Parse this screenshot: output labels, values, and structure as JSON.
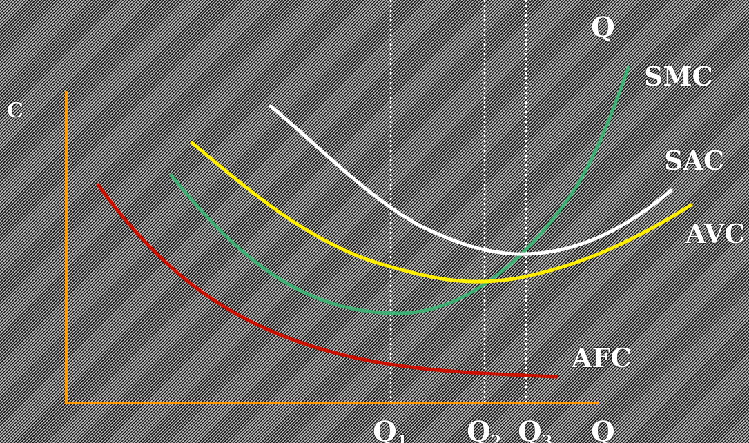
{
  "diagram": {
    "y_axis_label": "C",
    "x_axis_label": "Q",
    "top_label": "Q",
    "curves": [
      {
        "key": "smc",
        "label": "SMC",
        "color": "#3fae72"
      },
      {
        "key": "sac",
        "label": "SAC",
        "color": "#ffffff"
      },
      {
        "key": "avc",
        "label": "AVC",
        "color": "#ffee00"
      },
      {
        "key": "afc",
        "label": "AFC",
        "color": "#cc1100"
      }
    ],
    "quantity_markers": [
      {
        "letter": "Q",
        "subscript": "1"
      },
      {
        "letter": "Q",
        "subscript": "2"
      },
      {
        "letter": "Q",
        "subscript": "3"
      }
    ],
    "axis_color": "#ff9900"
  }
}
